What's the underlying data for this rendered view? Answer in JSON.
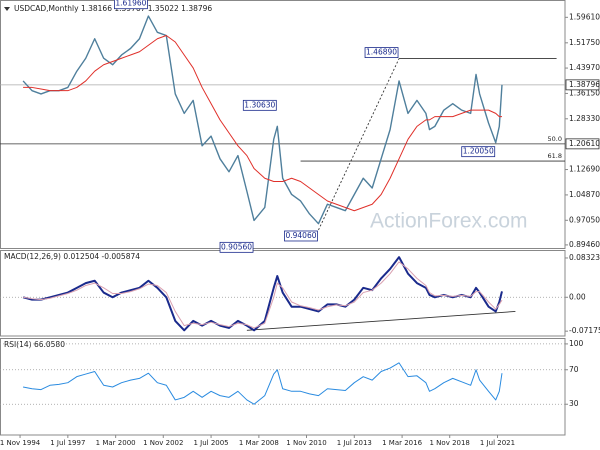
{
  "chart_data": [
    {
      "type": "line",
      "title": "USDCAD,Monthly  1.38166 1.39767 1.35022 1.38796",
      "watermark": "ActionForex.com",
      "xlim": [
        1993.71,
        2025.27
      ],
      "ylim": [
        0.882,
        1.6464
      ],
      "yticks": [
        {
          "value": 1.5961,
          "label": "1.59610"
        },
        {
          "value": 1.5175,
          "label": "1.51750"
        },
        {
          "value": 1.4397,
          "label": "1.43970"
        },
        {
          "value": 1.3615,
          "label": "1.36150"
        },
        {
          "value": 1.2833,
          "label": "1.28330"
        },
        {
          "value": 1.1269,
          "label": "1.12690"
        },
        {
          "value": 1.0487,
          "label": "1.04870"
        },
        {
          "value": 0.9705,
          "label": "0.97050"
        },
        {
          "value": 0.8946,
          "label": "0.89460"
        }
      ],
      "price_labels": [
        {
          "value": 1.38796,
          "label": "1.38796"
        },
        {
          "value": 1.2061,
          "label": "1.20610"
        }
      ],
      "x": [
        1995.0,
        1995.5,
        1996.0,
        1996.5,
        1997.0,
        1997.5,
        1998.0,
        1998.5,
        1999.0,
        1999.5,
        2000.0,
        2000.5,
        2001.0,
        2001.5,
        2002.0,
        2002.5,
        2003.0,
        2003.5,
        2004.0,
        2004.5,
        2005.0,
        2005.5,
        2006.0,
        2006.5,
        2007.0,
        2007.5,
        2007.9,
        2008.5,
        2009.0,
        2009.2,
        2009.5,
        2010.0,
        2010.5,
        2011.0,
        2011.5,
        2012.0,
        2012.5,
        2013.0,
        2013.5,
        2014.0,
        2014.5,
        2015.0,
        2015.5,
        2016.0,
        2016.5,
        2017.0,
        2017.5,
        2017.7,
        2018.0,
        2018.5,
        2019.0,
        2019.5,
        2020.0,
        2020.3,
        2020.5,
        2021.0,
        2021.4,
        2021.6,
        2021.75
      ],
      "series": [
        {
          "color": "#4f7f9c",
          "width": 1.4,
          "values": [
            1.4,
            1.37,
            1.36,
            1.37,
            1.37,
            1.38,
            1.43,
            1.47,
            1.53,
            1.47,
            1.45,
            1.48,
            1.5,
            1.53,
            1.6,
            1.55,
            1.54,
            1.36,
            1.3,
            1.34,
            1.2,
            1.23,
            1.16,
            1.12,
            1.17,
            1.06,
            0.97,
            1.01,
            1.22,
            1.26,
            1.1,
            1.05,
            1.03,
            0.99,
            0.96,
            1.02,
            1.01,
            1.0,
            1.05,
            1.1,
            1.07,
            1.16,
            1.25,
            1.4,
            1.3,
            1.34,
            1.3,
            1.25,
            1.26,
            1.31,
            1.33,
            1.31,
            1.3,
            1.42,
            1.36,
            1.27,
            1.21,
            1.26,
            1.38796
          ]
        },
        {
          "color": "#e0302a",
          "width": 1,
          "values": [
            1.38,
            1.38,
            1.375,
            1.37,
            1.37,
            1.37,
            1.38,
            1.4,
            1.43,
            1.45,
            1.46,
            1.47,
            1.48,
            1.49,
            1.51,
            1.53,
            1.54,
            1.52,
            1.48,
            1.44,
            1.38,
            1.33,
            1.28,
            1.24,
            1.2,
            1.17,
            1.13,
            1.1,
            1.09,
            1.09,
            1.09,
            1.1,
            1.09,
            1.07,
            1.05,
            1.03,
            1.02,
            1.01,
            1.0,
            1.01,
            1.02,
            1.05,
            1.1,
            1.16,
            1.22,
            1.26,
            1.28,
            1.28,
            1.29,
            1.29,
            1.29,
            1.3,
            1.31,
            1.31,
            1.31,
            1.31,
            1.3,
            1.29,
            1.29
          ]
        }
      ],
      "annotations": [
        {
          "text": "1.61960",
          "x": 2002.0,
          "y": 1.6196,
          "side": "above"
        },
        {
          "text": "1.30630",
          "x": 2009.2,
          "y": 1.3063,
          "side": "above"
        },
        {
          "text": "0.90560",
          "x": 2007.9,
          "y": 0.9056,
          "side": "below"
        },
        {
          "text": "0.94060",
          "x": 2011.5,
          "y": 0.9406,
          "side": "below"
        },
        {
          "text": "1.46890",
          "x": 2016.0,
          "y": 1.4689,
          "side": "above"
        },
        {
          "text": "1.20050",
          "x": 2021.4,
          "y": 1.2005,
          "side": "below"
        }
      ],
      "lines": [
        {
          "x": [
            2016.0,
            2024.8
          ],
          "y": [
            1.4689,
            1.4689
          ],
          "dashed": false
        },
        {
          "x": [
            2011.5,
            2016.0
          ],
          "y": [
            0.9406,
            1.4689
          ],
          "dashed": true
        }
      ],
      "levels": [
        {
          "label": "50.0",
          "value": 1.2061,
          "from": 1993.71
        },
        {
          "label": "61.8",
          "value": 1.153,
          "from": 2010.5
        }
      ]
    },
    {
      "type": "line",
      "title": "MACD(12,26,9) 0.012504 -0.005874",
      "xlim": [
        1993.71,
        2025.27
      ],
      "ylim": [
        -0.082,
        0.098
      ],
      "yticks": [
        0.083235,
        {
          "value": 0,
          "label": "0.00"
        },
        -0.071752
      ],
      "zero_line": true,
      "x": [
        1995.0,
        1995.5,
        1996.0,
        1996.5,
        1997.0,
        1997.5,
        1998.0,
        1998.5,
        1999.0,
        1999.5,
        2000.0,
        2000.5,
        2001.0,
        2001.5,
        2002.0,
        2002.5,
        2003.0,
        2003.5,
        2004.0,
        2004.5,
        2005.0,
        2005.5,
        2006.0,
        2006.5,
        2007.0,
        2007.5,
        2007.9,
        2008.5,
        2009.0,
        2009.2,
        2009.5,
        2010.0,
        2010.5,
        2011.0,
        2011.5,
        2012.0,
        2012.5,
        2013.0,
        2013.5,
        2014.0,
        2014.5,
        2015.0,
        2015.5,
        2016.0,
        2016.5,
        2017.0,
        2017.5,
        2017.7,
        2018.0,
        2018.5,
        2019.0,
        2019.5,
        2020.0,
        2020.3,
        2020.5,
        2021.0,
        2021.4,
        2021.6,
        2021.75
      ],
      "series": [
        {
          "color": "#1a2a8c",
          "width": 2,
          "values": [
            0.0,
            -0.005,
            -0.005,
            0.0,
            0.005,
            0.01,
            0.02,
            0.03,
            0.035,
            0.01,
            0.0,
            0.01,
            0.015,
            0.02,
            0.035,
            0.02,
            0.0,
            -0.05,
            -0.07,
            -0.05,
            -0.06,
            -0.05,
            -0.06,
            -0.065,
            -0.05,
            -0.06,
            -0.07,
            -0.05,
            0.02,
            0.045,
            0.01,
            -0.02,
            -0.02,
            -0.025,
            -0.03,
            -0.015,
            -0.015,
            -0.02,
            -0.005,
            0.02,
            0.015,
            0.04,
            0.06,
            0.085,
            0.05,
            0.03,
            0.02,
            0.005,
            0.0,
            0.005,
            0.0,
            0.005,
            0.0,
            0.02,
            0.01,
            -0.02,
            -0.03,
            -0.01,
            0.012504
          ]
        },
        {
          "color": "#d9a0b0",
          "width": 1,
          "values": [
            0.0,
            -0.003,
            -0.005,
            -0.002,
            0.003,
            0.008,
            0.015,
            0.025,
            0.03,
            0.02,
            0.008,
            0.008,
            0.012,
            0.018,
            0.028,
            0.025,
            0.01,
            -0.03,
            -0.06,
            -0.055,
            -0.058,
            -0.053,
            -0.058,
            -0.062,
            -0.055,
            -0.058,
            -0.065,
            -0.055,
            0.0,
            0.03,
            0.02,
            -0.01,
            -0.018,
            -0.022,
            -0.027,
            -0.02,
            -0.016,
            -0.018,
            -0.01,
            0.01,
            0.015,
            0.03,
            0.05,
            0.075,
            0.06,
            0.04,
            0.025,
            0.01,
            0.003,
            0.004,
            0.002,
            0.004,
            0.002,
            0.012,
            0.012,
            -0.01,
            -0.025,
            -0.015,
            -0.005874
          ]
        }
      ],
      "lines": [
        {
          "x": [
            2007.5,
            2022.5
          ],
          "y": [
            -0.07,
            -0.03
          ],
          "dashed": false
        }
      ]
    },
    {
      "type": "line",
      "title": "RSI(14) 66.0580",
      "xlim": [
        1993.71,
        2025.27
      ],
      "ylim": [
        -5.7,
        105.7
      ],
      "yticks": [
        100,
        70,
        30
      ],
      "grid": true,
      "xticks": [
        {
          "value": 1994.83,
          "label": "1 Nov 1994"
        },
        {
          "value": 1997.5,
          "label": "1 Jul 1997"
        },
        {
          "value": 2000.17,
          "label": "1 Mar 2000"
        },
        {
          "value": 2002.83,
          "label": "1 Nov 2002"
        },
        {
          "value": 2005.5,
          "label": "1 Jul 2005"
        },
        {
          "value": 2008.17,
          "label": "1 Mar 2008"
        },
        {
          "value": 2010.83,
          "label": "1 Nov 2010"
        },
        {
          "value": 2013.5,
          "label": "1 Jul 2013"
        },
        {
          "value": 2016.17,
          "label": "1 Mar 2016"
        },
        {
          "value": 2018.83,
          "label": "1 Nov 2018"
        },
        {
          "value": 2021.5,
          "label": "1 Jul 2021"
        }
      ],
      "x": [
        1995.0,
        1995.5,
        1996.0,
        1996.5,
        1997.0,
        1997.5,
        1998.0,
        1998.5,
        1999.0,
        1999.5,
        2000.0,
        2000.5,
        2001.0,
        2001.5,
        2002.0,
        2002.5,
        2003.0,
        2003.5,
        2004.0,
        2004.5,
        2005.0,
        2005.5,
        2006.0,
        2006.5,
        2007.0,
        2007.5,
        2007.9,
        2008.5,
        2009.0,
        2009.2,
        2009.5,
        2010.0,
        2010.5,
        2011.0,
        2011.5,
        2012.0,
        2012.5,
        2013.0,
        2013.5,
        2014.0,
        2014.5,
        2015.0,
        2015.5,
        2016.0,
        2016.5,
        2017.0,
        2017.5,
        2017.7,
        2018.0,
        2018.5,
        2019.0,
        2019.5,
        2020.0,
        2020.3,
        2020.5,
        2021.0,
        2021.4,
        2021.6,
        2021.75
      ],
      "series": [
        {
          "color": "#2a8be0",
          "width": 1,
          "values": [
            50,
            48,
            47,
            52,
            53,
            55,
            62,
            65,
            68,
            52,
            50,
            55,
            58,
            60,
            66,
            55,
            52,
            35,
            38,
            45,
            38,
            45,
            40,
            38,
            45,
            35,
            30,
            40,
            65,
            70,
            48,
            45,
            45,
            42,
            40,
            48,
            47,
            46,
            55,
            62,
            58,
            68,
            72,
            78,
            62,
            63,
            55,
            45,
            48,
            55,
            60,
            56,
            52,
            70,
            58,
            45,
            35,
            45,
            66.058
          ]
        }
      ]
    }
  ]
}
